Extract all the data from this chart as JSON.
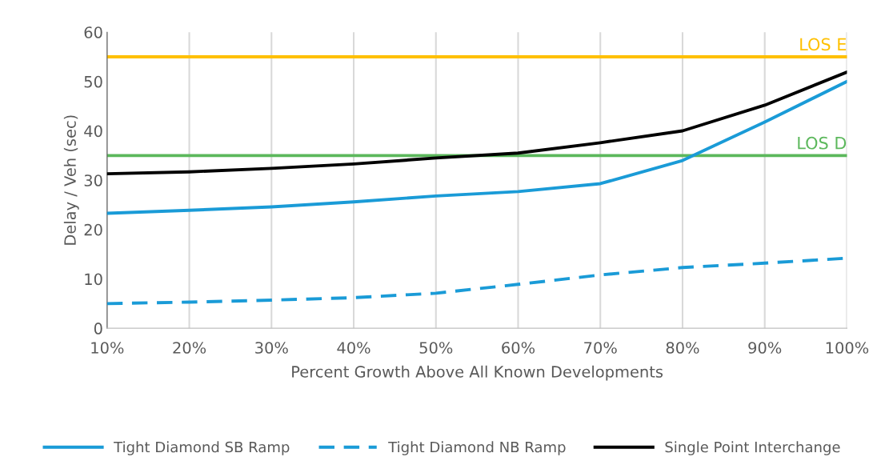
{
  "chart_data": {
    "type": "line",
    "xlabel": "Percent Growth Above All Known Developments",
    "ylabel": "Delay / Veh (sec)",
    "x": [
      10,
      20,
      30,
      40,
      50,
      60,
      70,
      80,
      90,
      100
    ],
    "series": [
      {
        "name": "Tight Diamond SB Ramp",
        "color": "#1a9bd7",
        "line_style": "solid",
        "values": [
          23.3,
          23.9,
          24.6,
          25.6,
          26.8,
          27.7,
          29.3,
          34,
          41.8,
          50
        ]
      },
      {
        "name": "Tight Diamond NB Ramp",
        "color": "#1a9bd7",
        "line_style": "dashed",
        "values": [
          5,
          5.3,
          5.7,
          6.2,
          7.1,
          8.9,
          10.8,
          12.3,
          13.2,
          14.2
        ]
      },
      {
        "name": "Single Point Interchange",
        "color": "#000000",
        "line_style": "solid",
        "values": [
          31.3,
          31.7,
          32.4,
          33.3,
          34.5,
          35.5,
          37.6,
          40,
          45.2,
          51.9
        ]
      }
    ],
    "ref_lines": [
      {
        "axis": "y",
        "value": 55,
        "label": "LOS E",
        "color": "#ffc000"
      },
      {
        "axis": "y",
        "value": 35,
        "label": "LOS D",
        "color": "#5cb85c"
      }
    ],
    "xlim": [
      10,
      100
    ],
    "xticks": [
      {
        "value": 10,
        "label": "10%"
      },
      {
        "value": 20,
        "label": "20%"
      },
      {
        "value": 30,
        "label": "30%"
      },
      {
        "value": 40,
        "label": "40%"
      },
      {
        "value": 50,
        "label": "50%"
      },
      {
        "value": 60,
        "label": "60%"
      },
      {
        "value": 70,
        "label": "70%"
      },
      {
        "value": 80,
        "label": "80%"
      },
      {
        "value": 90,
        "label": "90%"
      },
      {
        "value": 100,
        "label": "100%"
      }
    ],
    "ylim": [
      0,
      60
    ],
    "yticks": [
      0,
      10,
      20,
      30,
      40,
      50,
      60
    ],
    "grid": "x",
    "legend": "bottom",
    "marker": "none"
  }
}
